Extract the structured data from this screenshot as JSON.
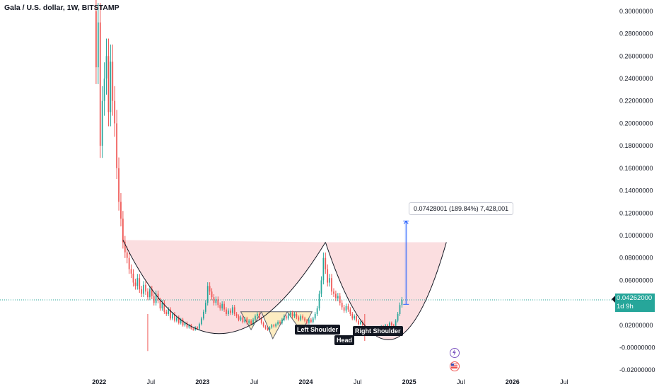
{
  "header": {
    "title": "Gala / U.S. dollar, 1W, BITSTAMP"
  },
  "price_badge": {
    "price": "0.04262000",
    "countdown": "1d 9h"
  },
  "measure": {
    "text": "0.07428001 (189.84%) 7,428,001"
  },
  "patterns": {
    "left_shoulder": "Left Shoulder",
    "head": "Head",
    "right_shoulder": "Right Shoulder"
  },
  "colors": {
    "up": "#26a69a",
    "down": "#ef5350",
    "cup_fill": "#f9d3d6",
    "hs_fill": "#fde9b6",
    "measure": "#2962ff",
    "price_line": "#26a69a"
  },
  "icons": [
    "lightning-icon",
    "us-flag-icon"
  ],
  "chart_data": {
    "type": "candlestick",
    "title": "Gala / U.S. dollar, 1W, BITSTAMP",
    "y_ticks": [
      "0.30000000",
      "0.28000000",
      "0.26000000",
      "0.24000000",
      "0.22000000",
      "0.20000000",
      "0.18000000",
      "0.16000000",
      "0.14000000",
      "0.12000000",
      "0.10000000",
      "0.08000000",
      "0.06000000",
      "0.04000000",
      "0.02000000",
      "-0.00000000",
      "-0.02000000"
    ],
    "x_ticks": [
      {
        "label": "2022",
        "t": 2022.0,
        "bold": true
      },
      {
        "label": "Jul",
        "t": 2022.5,
        "bold": false
      },
      {
        "label": "2023",
        "t": 2023.0,
        "bold": true
      },
      {
        "label": "Jul",
        "t": 2023.5,
        "bold": false
      },
      {
        "label": "2024",
        "t": 2024.0,
        "bold": true
      },
      {
        "label": "Jul",
        "t": 2024.5,
        "bold": false
      },
      {
        "label": "2025",
        "t": 2025.0,
        "bold": true
      },
      {
        "label": "Jul",
        "t": 2025.5,
        "bold": false
      },
      {
        "label": "2026",
        "t": 2026.0,
        "bold": true
      },
      {
        "label": "Jul",
        "t": 2026.5,
        "bold": false
      }
    ],
    "ylim": [
      -0.023,
      0.31
    ],
    "xlim": [
      2021.04,
      2026.98
    ],
    "current_price": 0.04262,
    "series_close": [
      [
        2021.95,
        0.3
      ],
      [
        2021.97,
        0.25
      ],
      [
        2021.99,
        0.29
      ],
      [
        2022.01,
        0.18
      ],
      [
        2022.03,
        0.22
      ],
      [
        2022.05,
        0.24
      ],
      [
        2022.07,
        0.26
      ],
      [
        2022.09,
        0.21
      ],
      [
        2022.11,
        0.255
      ],
      [
        2022.13,
        0.22
      ],
      [
        2022.15,
        0.2
      ],
      [
        2022.17,
        0.16
      ],
      [
        2022.19,
        0.13
      ],
      [
        2022.21,
        0.115
      ],
      [
        2022.23,
        0.094
      ],
      [
        2022.25,
        0.085
      ],
      [
        2022.27,
        0.08
      ],
      [
        2022.29,
        0.07
      ],
      [
        2022.31,
        0.066
      ],
      [
        2022.33,
        0.058
      ],
      [
        2022.35,
        0.055
      ],
      [
        2022.37,
        0.062
      ],
      [
        2022.39,
        0.052
      ],
      [
        2022.41,
        0.048
      ],
      [
        2022.43,
        0.056
      ],
      [
        2022.45,
        0.05
      ],
      [
        2022.47,
        0.045
      ],
      [
        2022.49,
        0.052
      ],
      [
        2022.51,
        0.046
      ],
      [
        2022.53,
        0.04
      ],
      [
        2022.55,
        0.048
      ],
      [
        2022.57,
        0.042
      ],
      [
        2022.59,
        0.035
      ],
      [
        2022.61,
        0.04
      ],
      [
        2022.63,
        0.032
      ],
      [
        2022.65,
        0.03
      ],
      [
        2022.67,
        0.034
      ],
      [
        2022.69,
        0.026
      ],
      [
        2022.71,
        0.03
      ],
      [
        2022.73,
        0.024
      ],
      [
        2022.75,
        0.027
      ],
      [
        2022.77,
        0.022
      ],
      [
        2022.79,
        0.025
      ],
      [
        2022.81,
        0.02
      ],
      [
        2022.83,
        0.022
      ],
      [
        2022.85,
        0.018
      ],
      [
        2022.87,
        0.02
      ],
      [
        2022.89,
        0.017
      ],
      [
        2022.91,
        0.016
      ],
      [
        2022.93,
        0.018
      ],
      [
        2022.95,
        0.017
      ],
      [
        2022.97,
        0.021
      ],
      [
        2022.99,
        0.026
      ],
      [
        2023.01,
        0.032
      ],
      [
        2023.03,
        0.04
      ],
      [
        2023.05,
        0.055
      ],
      [
        2023.07,
        0.05
      ],
      [
        2023.09,
        0.045
      ],
      [
        2023.11,
        0.04
      ],
      [
        2023.13,
        0.043
      ],
      [
        2023.15,
        0.038
      ],
      [
        2023.17,
        0.035
      ],
      [
        2023.19,
        0.039
      ],
      [
        2023.21,
        0.034
      ],
      [
        2023.23,
        0.03
      ],
      [
        2023.25,
        0.033
      ],
      [
        2023.27,
        0.031
      ],
      [
        2023.29,
        0.036
      ],
      [
        2023.31,
        0.03
      ],
      [
        2023.33,
        0.028
      ],
      [
        2023.35,
        0.025
      ],
      [
        2023.37,
        0.027
      ],
      [
        2023.39,
        0.023
      ],
      [
        2023.41,
        0.026
      ],
      [
        2023.43,
        0.022
      ],
      [
        2023.45,
        0.024
      ],
      [
        2023.47,
        0.021
      ],
      [
        2023.49,
        0.025
      ],
      [
        2023.51,
        0.028
      ],
      [
        2023.53,
        0.03
      ],
      [
        2023.55,
        0.026
      ],
      [
        2023.57,
        0.022
      ],
      [
        2023.59,
        0.019
      ],
      [
        2023.61,
        0.017
      ],
      [
        2023.63,
        0.016
      ],
      [
        2023.65,
        0.018
      ],
      [
        2023.67,
        0.02
      ],
      [
        2023.69,
        0.019
      ],
      [
        2023.71,
        0.021
      ],
      [
        2023.73,
        0.023
      ],
      [
        2023.75,
        0.022
      ],
      [
        2023.77,
        0.025
      ],
      [
        2023.79,
        0.028
      ],
      [
        2023.81,
        0.026
      ],
      [
        2023.83,
        0.029
      ],
      [
        2023.85,
        0.031
      ],
      [
        2023.87,
        0.028
      ],
      [
        2023.89,
        0.03
      ],
      [
        2023.91,
        0.027
      ],
      [
        2023.93,
        0.025
      ],
      [
        2023.95,
        0.028
      ],
      [
        2023.97,
        0.026
      ],
      [
        2023.99,
        0.024
      ],
      [
        2024.01,
        0.022
      ],
      [
        2024.03,
        0.025
      ],
      [
        2024.05,
        0.023
      ],
      [
        2024.07,
        0.026
      ],
      [
        2024.09,
        0.03
      ],
      [
        2024.11,
        0.035
      ],
      [
        2024.13,
        0.048
      ],
      [
        2024.15,
        0.06
      ],
      [
        2024.17,
        0.08
      ],
      [
        2024.19,
        0.07
      ],
      [
        2024.21,
        0.058
      ],
      [
        2024.23,
        0.062
      ],
      [
        2024.25,
        0.05
      ],
      [
        2024.27,
        0.048
      ],
      [
        2024.29,
        0.044
      ],
      [
        2024.31,
        0.046
      ],
      [
        2024.33,
        0.04
      ],
      [
        2024.35,
        0.036
      ],
      [
        2024.37,
        0.033
      ],
      [
        2024.39,
        0.037
      ],
      [
        2024.41,
        0.034
      ],
      [
        2024.43,
        0.03
      ],
      [
        2024.45,
        0.026
      ],
      [
        2024.47,
        0.028
      ],
      [
        2024.49,
        0.024
      ],
      [
        2024.51,
        0.021
      ],
      [
        2024.53,
        0.023
      ],
      [
        2024.55,
        0.02
      ],
      [
        2024.57,
        0.018
      ],
      [
        2024.59,
        0.016
      ],
      [
        2024.61,
        0.018
      ],
      [
        2024.63,
        0.015
      ],
      [
        2024.65,
        0.017
      ],
      [
        2024.67,
        0.016
      ],
      [
        2024.69,
        0.018
      ],
      [
        2024.71,
        0.017
      ],
      [
        2024.73,
        0.019
      ],
      [
        2024.75,
        0.018
      ],
      [
        2024.77,
        0.02
      ],
      [
        2024.79,
        0.019
      ],
      [
        2024.81,
        0.022
      ],
      [
        2024.83,
        0.02
      ],
      [
        2024.85,
        0.018
      ],
      [
        2024.87,
        0.024
      ],
      [
        2024.89,
        0.03
      ],
      [
        2024.91,
        0.038
      ],
      [
        2024.93,
        0.04262
      ]
    ],
    "spike_wicks": [
      {
        "t": 2022.47,
        "low": -0.003
      },
      {
        "t": 2024.57,
        "low": 0.006
      }
    ],
    "cup_handle": {
      "rim_start": [
        2022.23,
        0.096
      ],
      "rim_end": [
        2025.36,
        0.094
      ],
      "cup_bottom": [
        2023.1,
        0.013
      ],
      "cup_right_peak": [
        2024.19,
        0.094
      ],
      "handle_bottom": [
        2024.82,
        0.012
      ]
    },
    "head_and_shoulders": {
      "points": [
        [
          2023.37,
          0.032
        ],
        [
          2023.47,
          0.016
        ],
        [
          2023.57,
          0.032
        ],
        [
          2023.68,
          0.008
        ],
        [
          2023.82,
          0.032
        ],
        [
          2023.96,
          0.014
        ],
        [
          2024.06,
          0.032
        ]
      ]
    },
    "measure_range": {
      "t": 2024.97,
      "from": 0.0386,
      "to": 0.1129,
      "delta": 0.07428001,
      "percent": 189.84
    }
  }
}
